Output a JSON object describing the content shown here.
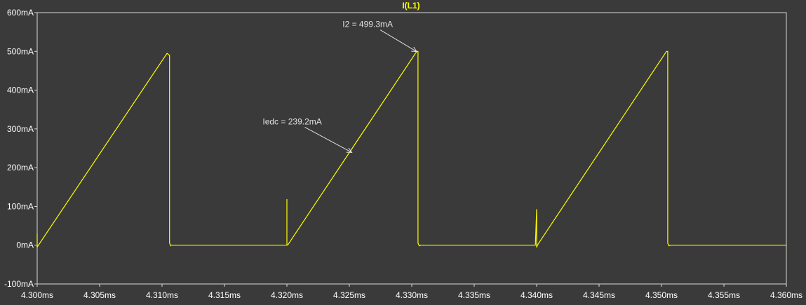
{
  "chart_data": {
    "type": "line",
    "title": "I(L1)",
    "xlabel": "",
    "ylabel": "",
    "xlim": [
      4.3,
      4.36
    ],
    "ylim": [
      -100,
      600
    ],
    "x_ticks": [
      4.3,
      4.305,
      4.31,
      4.315,
      4.32,
      4.325,
      4.33,
      4.335,
      4.34,
      4.345,
      4.35,
      4.355,
      4.36
    ],
    "x_tick_labels": [
      "4.300ms",
      "4.305ms",
      "4.310ms",
      "4.315ms",
      "4.320ms",
      "4.325ms",
      "4.330ms",
      "4.335ms",
      "4.340ms",
      "4.345ms",
      "4.350ms",
      "4.355ms",
      "4.360ms"
    ],
    "y_ticks": [
      600,
      500,
      400,
      300,
      200,
      100,
      0,
      -100
    ],
    "y_tick_labels": [
      "600mA",
      "500mA",
      "400mA",
      "300mA",
      "200mA",
      "100mA",
      "0mA",
      "-100mA"
    ],
    "grid": false,
    "series": [
      {
        "name": "I(L1)",
        "color": "#ffff00",
        "x": [
          4.3,
          4.3,
          4.3001,
          4.3104,
          4.3106,
          4.3106,
          4.3107,
          4.3107,
          4.32,
          4.32,
          4.32,
          4.3201,
          4.3304,
          4.3305,
          4.3305,
          4.3306,
          4.3307,
          4.3399,
          4.34,
          4.34,
          4.3401,
          4.3504,
          4.3505,
          4.3505,
          4.3506,
          4.3507,
          4.36
        ],
        "y": [
          30,
          -5,
          0,
          495,
          490,
          5,
          -2,
          0,
          0,
          118,
          0,
          2,
          500,
          500,
          5,
          -2,
          0,
          0,
          92,
          -5,
          2,
          500,
          500,
          5,
          -2,
          0,
          0
        ]
      }
    ],
    "annotations": [
      {
        "text": "I2 = 499.3mA",
        "x": 4.3304,
        "y": 499.3
      },
      {
        "text": "Iedc = 239.2mA",
        "x": 4.3252,
        "y": 239.2
      }
    ]
  },
  "colors": {
    "background": "#3a3a3a",
    "plot_background": "#3a3a3a",
    "axis": "#d8d8d8",
    "tick_text": "#ffffff",
    "trace": "#ffff00",
    "title": "#ffff00",
    "annotation": "#e0e0e0"
  }
}
